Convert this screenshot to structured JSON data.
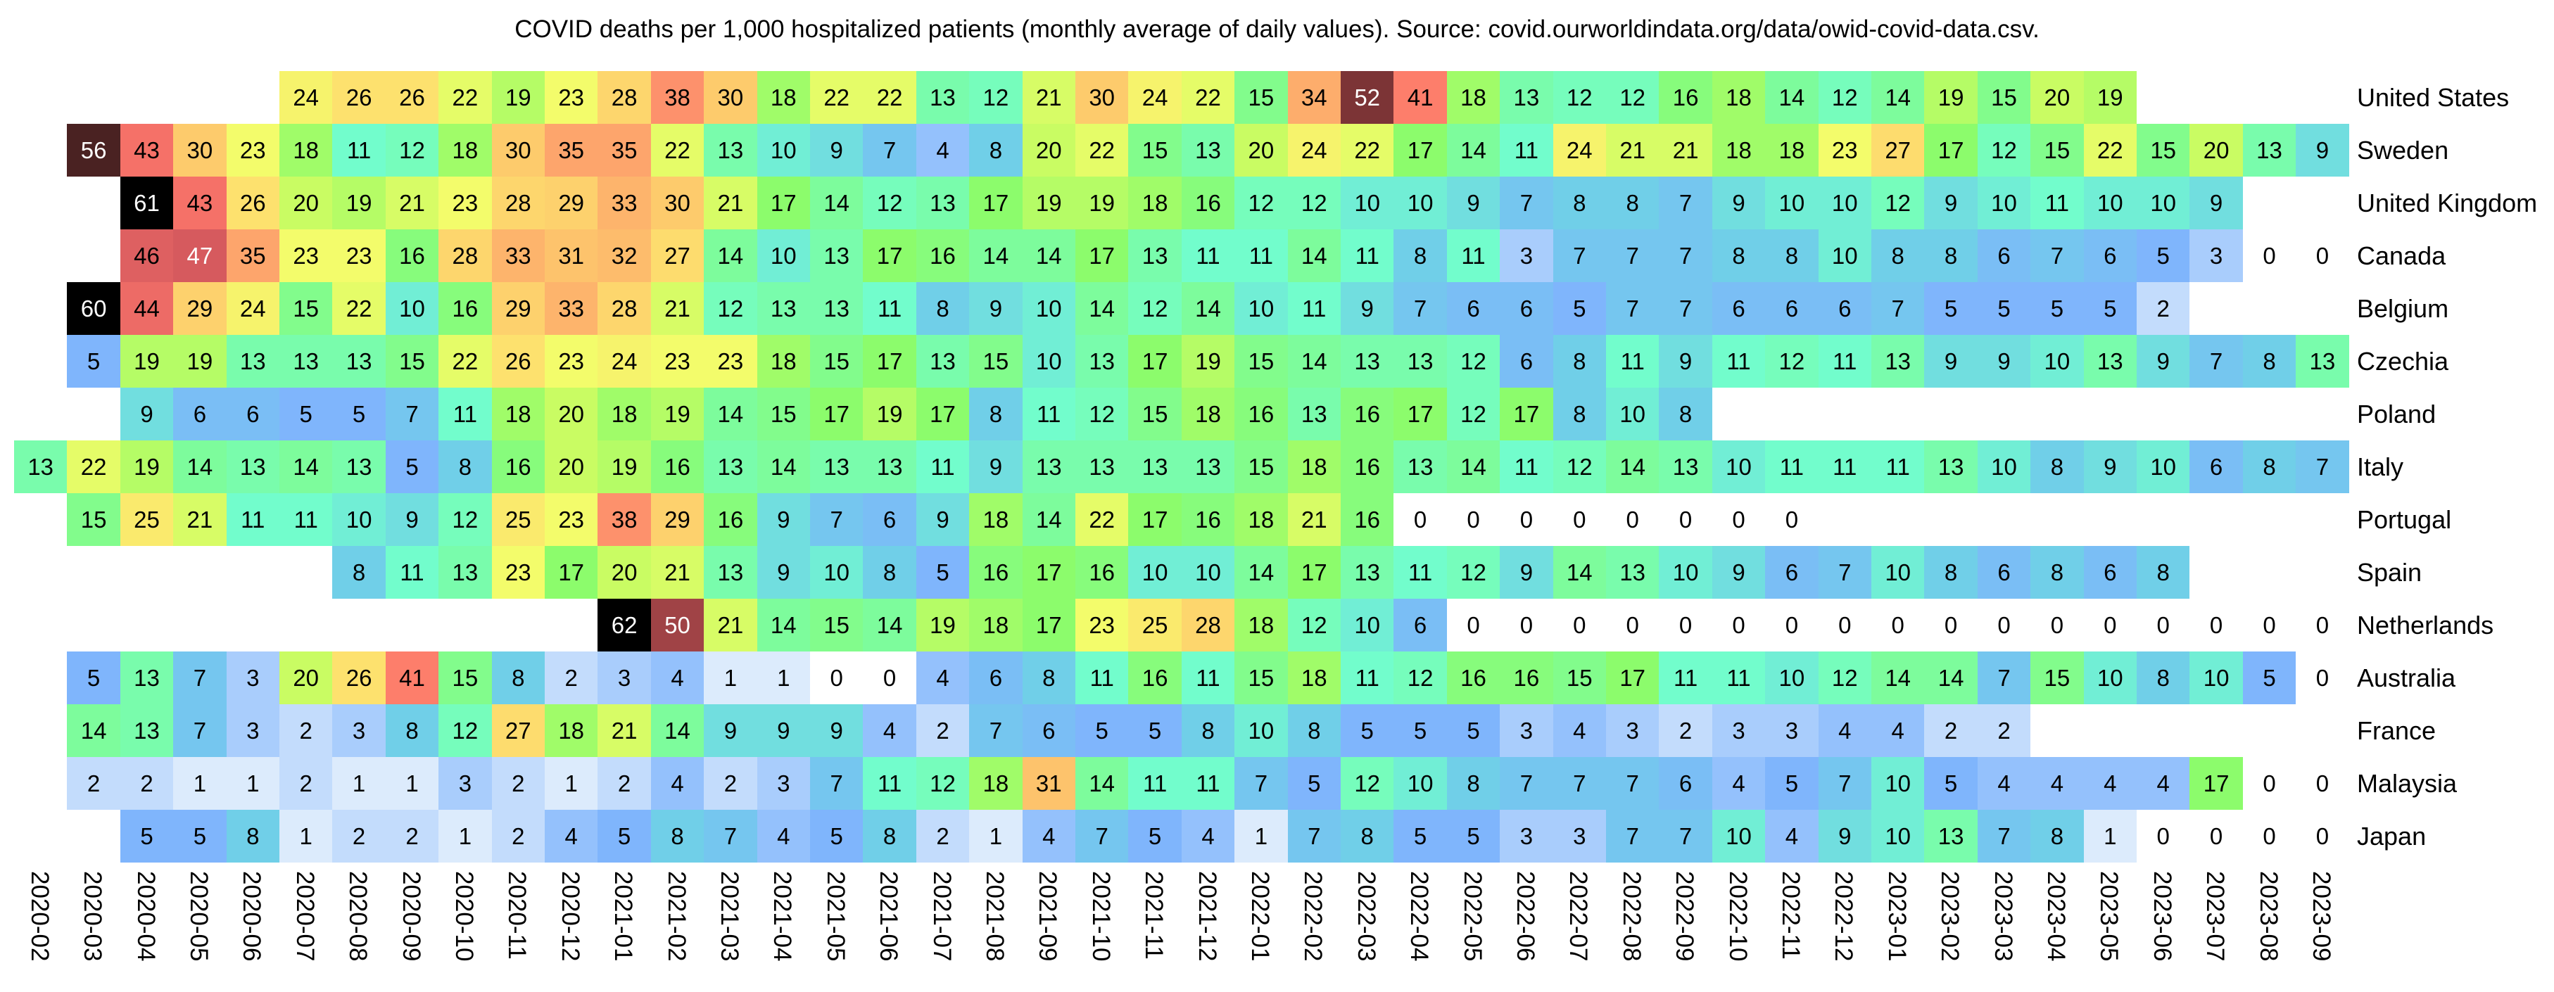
{
  "chart_data": {
    "type": "heatmap",
    "title": "COVID deaths per 1,000 hospitalized patients (monthly average of daily values). Source: covid.ourworldindata.org/data/owid-covid-data.csv.",
    "xlabel": "",
    "ylabel": "",
    "x": [
      "2020-02",
      "2020-03",
      "2020-04",
      "2020-05",
      "2020-06",
      "2020-07",
      "2020-08",
      "2020-09",
      "2020-10",
      "2020-11",
      "2020-12",
      "2021-01",
      "2021-02",
      "2021-03",
      "2021-04",
      "2021-05",
      "2021-06",
      "2021-07",
      "2021-08",
      "2021-09",
      "2021-10",
      "2021-11",
      "2021-12",
      "2022-01",
      "2022-02",
      "2022-03",
      "2022-04",
      "2022-05",
      "2022-06",
      "2022-07",
      "2022-08",
      "2022-09",
      "2022-10",
      "2022-11",
      "2022-12",
      "2023-01",
      "2023-02",
      "2023-03",
      "2023-04",
      "2023-05",
      "2023-06",
      "2023-07",
      "2023-08",
      "2023-09"
    ],
    "colormap": [
      {
        "v": 0,
        "c": "#ffffff"
      },
      {
        "v": 1,
        "c": "#dcebfc"
      },
      {
        "v": 3,
        "c": "#a9cdfc"
      },
      {
        "v": 5,
        "c": "#7fb5fc"
      },
      {
        "v": 8,
        "c": "#70cfe8"
      },
      {
        "v": 11,
        "c": "#72fdcc"
      },
      {
        "v": 14,
        "c": "#7dfc9c"
      },
      {
        "v": 17,
        "c": "#8cfc6c"
      },
      {
        "v": 20,
        "c": "#c9fc63"
      },
      {
        "v": 23,
        "c": "#f3fc6b"
      },
      {
        "v": 26,
        "c": "#fde16e"
      },
      {
        "v": 30,
        "c": "#fdcb6c"
      },
      {
        "v": 35,
        "c": "#fda56c"
      },
      {
        "v": 42,
        "c": "#fd776b"
      },
      {
        "v": 47,
        "c": "#d65a5e"
      },
      {
        "v": 52,
        "c": "#7c3436"
      },
      {
        "v": 56,
        "c": "#4a2222"
      },
      {
        "v": 60,
        "c": "#000000"
      }
    ],
    "series": [
      {
        "name": "United States",
        "values": [
          null,
          null,
          null,
          null,
          null,
          24,
          26,
          26,
          22,
          19,
          23,
          28,
          38,
          30,
          18,
          22,
          22,
          13,
          12,
          21,
          30,
          24,
          22,
          15,
          34,
          52,
          41,
          18,
          13,
          12,
          12,
          16,
          18,
          14,
          12,
          14,
          19,
          15,
          20,
          19,
          null,
          null,
          null,
          null
        ]
      },
      {
        "name": "Sweden",
        "values": [
          null,
          56,
          43,
          30,
          23,
          18,
          11,
          12,
          18,
          30,
          35,
          35,
          22,
          13,
          10,
          9,
          7,
          4,
          8,
          20,
          22,
          15,
          13,
          20,
          24,
          22,
          17,
          14,
          11,
          24,
          21,
          21,
          18,
          18,
          23,
          27,
          17,
          12,
          15,
          22,
          15,
          20,
          13,
          9
        ]
      },
      {
        "name": "United Kingdom",
        "values": [
          null,
          null,
          61,
          43,
          26,
          20,
          19,
          21,
          23,
          28,
          29,
          33,
          30,
          21,
          17,
          14,
          12,
          13,
          17,
          19,
          19,
          18,
          16,
          12,
          12,
          10,
          10,
          9,
          7,
          8,
          8,
          7,
          9,
          10,
          10,
          12,
          9,
          10,
          11,
          10,
          10,
          9,
          null,
          null
        ]
      },
      {
        "name": "Canada",
        "values": [
          null,
          null,
          46,
          47,
          35,
          23,
          23,
          16,
          28,
          33,
          31,
          32,
          27,
          14,
          10,
          13,
          17,
          16,
          14,
          14,
          17,
          13,
          11,
          11,
          14,
          11,
          8,
          11,
          3,
          7,
          7,
          7,
          8,
          8,
          10,
          8,
          8,
          6,
          7,
          6,
          5,
          3,
          0,
          0
        ]
      },
      {
        "name": "Belgium",
        "values": [
          null,
          60,
          44,
          29,
          24,
          15,
          22,
          10,
          16,
          29,
          33,
          28,
          21,
          12,
          13,
          13,
          11,
          8,
          9,
          10,
          14,
          12,
          14,
          10,
          11,
          9,
          7,
          6,
          6,
          5,
          7,
          7,
          6,
          6,
          6,
          7,
          5,
          5,
          5,
          5,
          2,
          null,
          null,
          null
        ]
      },
      {
        "name": "Czechia",
        "values": [
          null,
          5,
          19,
          19,
          13,
          13,
          13,
          15,
          22,
          26,
          23,
          24,
          23,
          23,
          18,
          15,
          17,
          13,
          15,
          10,
          13,
          17,
          19,
          15,
          14,
          13,
          13,
          12,
          6,
          8,
          11,
          9,
          11,
          12,
          11,
          13,
          9,
          9,
          10,
          13,
          9,
          7,
          8,
          13
        ]
      },
      {
        "name": "Poland",
        "values": [
          null,
          null,
          9,
          6,
          6,
          5,
          5,
          7,
          11,
          18,
          20,
          18,
          19,
          14,
          15,
          17,
          19,
          17,
          8,
          11,
          12,
          15,
          18,
          16,
          13,
          16,
          17,
          12,
          17,
          8,
          10,
          8,
          null,
          null,
          null,
          null,
          null,
          null,
          null,
          null,
          null,
          null,
          null,
          null
        ]
      },
      {
        "name": "Italy",
        "values": [
          13,
          22,
          19,
          14,
          13,
          14,
          13,
          5,
          8,
          16,
          20,
          19,
          16,
          13,
          14,
          13,
          13,
          11,
          9,
          13,
          13,
          13,
          13,
          15,
          18,
          16,
          13,
          14,
          11,
          12,
          14,
          13,
          10,
          11,
          11,
          11,
          13,
          10,
          8,
          9,
          10,
          6,
          8,
          7
        ]
      },
      {
        "name": "Portugal",
        "values": [
          null,
          15,
          25,
          21,
          11,
          11,
          10,
          9,
          12,
          25,
          23,
          38,
          29,
          16,
          9,
          7,
          6,
          9,
          18,
          14,
          22,
          17,
          16,
          18,
          21,
          16,
          0,
          0,
          0,
          0,
          0,
          0,
          0,
          0,
          null,
          null,
          null,
          null,
          null,
          null,
          null,
          null,
          null,
          null
        ]
      },
      {
        "name": "Spain",
        "values": [
          null,
          null,
          null,
          null,
          null,
          null,
          8,
          11,
          13,
          23,
          17,
          20,
          21,
          13,
          9,
          10,
          8,
          5,
          16,
          17,
          16,
          10,
          10,
          14,
          17,
          13,
          11,
          12,
          9,
          14,
          13,
          10,
          9,
          6,
          7,
          10,
          8,
          6,
          8,
          6,
          8,
          null,
          null,
          null
        ]
      },
      {
        "name": "Netherlands",
        "values": [
          null,
          null,
          null,
          null,
          null,
          null,
          null,
          null,
          null,
          null,
          null,
          62,
          50,
          21,
          14,
          15,
          14,
          19,
          18,
          17,
          23,
          25,
          28,
          18,
          12,
          10,
          6,
          0,
          0,
          0,
          0,
          0,
          0,
          0,
          0,
          0,
          0,
          0,
          0,
          0,
          0,
          0,
          0,
          0
        ]
      },
      {
        "name": "Australia",
        "values": [
          null,
          5,
          13,
          7,
          3,
          20,
          26,
          41,
          15,
          8,
          2,
          3,
          4,
          1,
          1,
          0,
          0,
          4,
          6,
          8,
          11,
          16,
          11,
          15,
          18,
          11,
          12,
          16,
          16,
          15,
          17,
          11,
          11,
          10,
          12,
          14,
          14,
          7,
          15,
          10,
          8,
          10,
          5,
          0
        ]
      },
      {
        "name": "France",
        "values": [
          null,
          14,
          13,
          7,
          3,
          2,
          3,
          8,
          12,
          27,
          18,
          21,
          14,
          9,
          9,
          9,
          4,
          2,
          7,
          6,
          5,
          5,
          8,
          10,
          8,
          5,
          5,
          5,
          3,
          4,
          3,
          2,
          3,
          3,
          4,
          4,
          2,
          2,
          null,
          null,
          null,
          null,
          null,
          null
        ]
      },
      {
        "name": "Malaysia",
        "values": [
          null,
          2,
          2,
          1,
          1,
          2,
          1,
          1,
          3,
          2,
          1,
          2,
          4,
          2,
          3,
          7,
          11,
          12,
          18,
          31,
          14,
          11,
          11,
          7,
          5,
          12,
          10,
          8,
          7,
          7,
          7,
          6,
          4,
          5,
          7,
          10,
          5,
          4,
          4,
          4,
          4,
          17,
          0,
          0
        ]
      },
      {
        "name": "Japan",
        "values": [
          null,
          null,
          5,
          5,
          8,
          1,
          2,
          2,
          1,
          2,
          4,
          5,
          8,
          7,
          4,
          5,
          8,
          2,
          1,
          4,
          7,
          5,
          4,
          1,
          7,
          8,
          5,
          5,
          3,
          3,
          7,
          7,
          10,
          4,
          9,
          10,
          13,
          7,
          8,
          1,
          0,
          0,
          0,
          0
        ]
      }
    ]
  }
}
